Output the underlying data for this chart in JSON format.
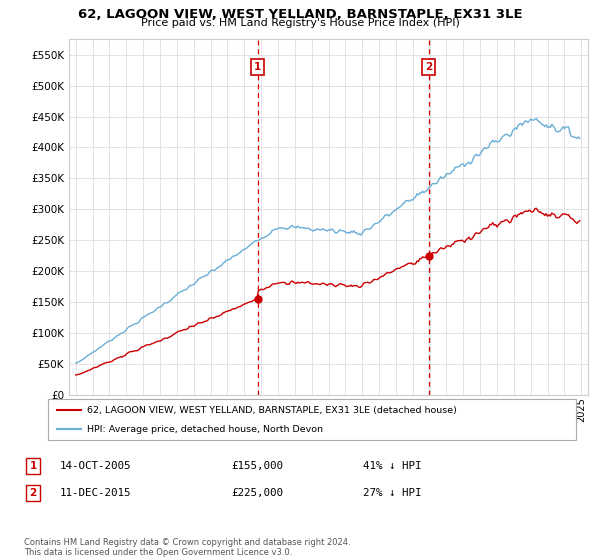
{
  "title": "62, LAGOON VIEW, WEST YELLAND, BARNSTAPLE, EX31 3LE",
  "subtitle": "Price paid vs. HM Land Registry's House Price Index (HPI)",
  "legend_label_red": "62, LAGOON VIEW, WEST YELLAND, BARNSTAPLE, EX31 3LE (detached house)",
  "legend_label_blue": "HPI: Average price, detached house, North Devon",
  "footer": "Contains HM Land Registry data © Crown copyright and database right 2024.\nThis data is licensed under the Open Government Licence v3.0.",
  "sale1_date": "14-OCT-2005",
  "sale1_price": 155000,
  "sale1_label": "1",
  "sale1_hpi_pct": "41% ↓ HPI",
  "sale2_date": "11-DEC-2015",
  "sale2_price": 225000,
  "sale2_label": "2",
  "sale2_hpi_pct": "27% ↓ HPI",
  "ylim": [
    0,
    575000
  ],
  "yticks": [
    0,
    50000,
    100000,
    150000,
    200000,
    250000,
    300000,
    350000,
    400000,
    450000,
    500000,
    550000
  ],
  "red_color": "#cc0000",
  "blue_color": "#6aaed6",
  "dashed_color": "#cc0000",
  "grid_color": "#dddddd",
  "background_color": "#ffffff"
}
